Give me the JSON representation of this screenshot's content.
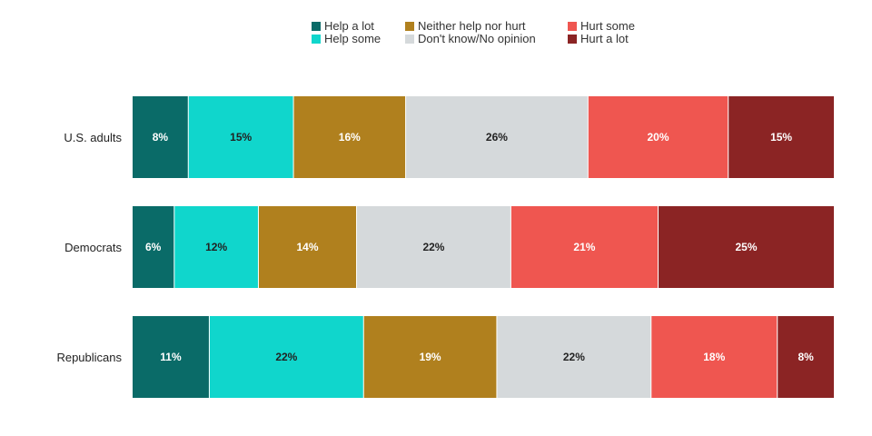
{
  "chart_data": {
    "type": "bar",
    "orientation": "horizontal",
    "stacked": true,
    "title": "",
    "xlabel": "",
    "ylabel": "",
    "xlim": [
      0,
      100
    ],
    "grid": false,
    "legend_position": "top",
    "value_suffix": "%",
    "categories": [
      "U.S. adults",
      "Democrats",
      "Republicans"
    ],
    "series": [
      {
        "name": "Help a lot",
        "color": "#0a6b68",
        "values": [
          8,
          6,
          11
        ]
      },
      {
        "name": "Help some",
        "color": "#10d6cc",
        "values": [
          15,
          12,
          22
        ]
      },
      {
        "name": "Neither help nor hurt",
        "color": "#b0801e",
        "values": [
          16,
          14,
          19
        ]
      },
      {
        "name": "Don't know/No opinion",
        "color": "#d5d9db",
        "values": [
          26,
          22,
          22
        ]
      },
      {
        "name": "Hurt some",
        "color": "#ef5650",
        "values": [
          20,
          21,
          18
        ]
      },
      {
        "name": "Hurt a lot",
        "color": "#8b2424",
        "values": [
          15,
          25,
          8
        ]
      }
    ],
    "label_colors": [
      "#ffffff",
      "#222222",
      "#ffffff",
      "#222222",
      "#ffffff",
      "#ffffff"
    ]
  }
}
